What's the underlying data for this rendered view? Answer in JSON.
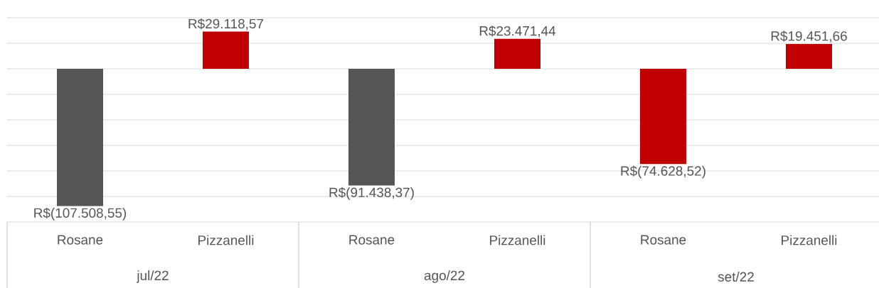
{
  "chart_data": {
    "type": "bar",
    "categories": [
      "Rosane",
      "Pizzanelli",
      "Rosane",
      "Pizzanelli",
      "Rosane",
      "Pizzanelli"
    ],
    "values": [
      -107508.55,
      29118.57,
      -91438.37,
      23471.44,
      -74628.52,
      19451.66
    ],
    "colors": [
      "#555555",
      "#c00000",
      "#555555",
      "#c00000",
      "#c00000",
      "#c00000"
    ],
    "value_labels": [
      "R$(107.508,55)",
      "R$29.118,57",
      "R$(91.438,37)",
      "R$23.471,44",
      "R$(74.628,52)",
      "R$19.451,66"
    ],
    "annotations": [
      "jul/22",
      "ago/22",
      "set/22"
    ],
    "ylim": [
      -120000,
      40000
    ],
    "yticks": [
      {
        "value": -120000,
        "label": null
      },
      {
        "value": -100000,
        "label": null
      },
      {
        "value": -80000,
        "label": null
      },
      {
        "value": -60000,
        "label": null
      },
      {
        "value": -40000,
        "label": null
      },
      {
        "value": -20000,
        "label": null
      },
      {
        "value": 0,
        "label": null
      },
      {
        "value": 20000,
        "label": null
      },
      {
        "value": 40000,
        "label": null
      }
    ],
    "grid": "y",
    "tick_labels": "x"
  }
}
